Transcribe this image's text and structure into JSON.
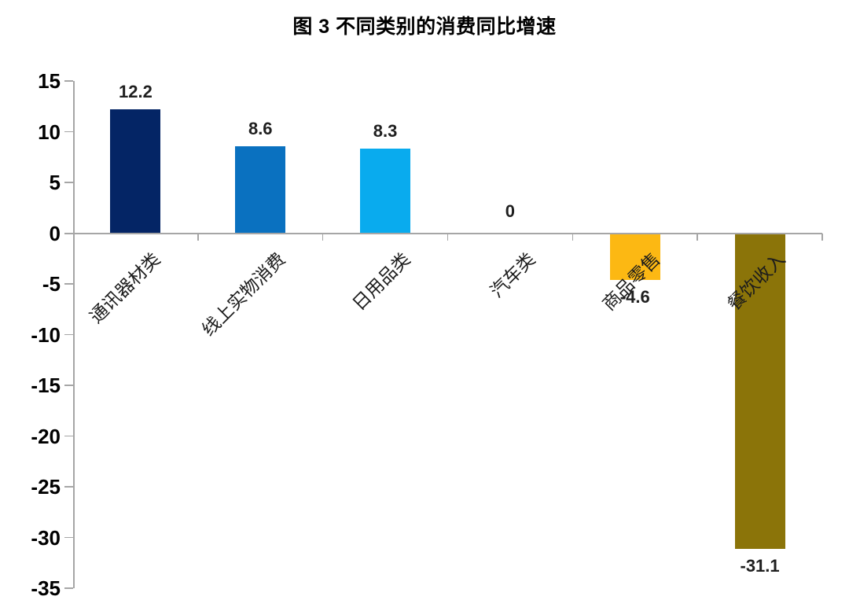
{
  "chart_data": {
    "type": "bar",
    "title": "图 3  不同类别的消费同比增速",
    "categories": [
      "通讯器材类",
      "线上实物消费",
      "日用品类",
      "汽车类",
      "商品零售",
      "餐饮收入"
    ],
    "values": [
      12.2,
      8.6,
      8.3,
      0,
      -4.6,
      -31.1
    ],
    "value_labels": [
      "12.2",
      "8.6",
      "8.3",
      "0",
      "-4.6",
      "-31.1"
    ],
    "bar_colors": [
      "#042565",
      "#0a71c0",
      "#09abee",
      null,
      "#fcb813",
      "#8b7409"
    ],
    "xlabel": "",
    "ylabel": "",
    "ylim": [
      -35,
      15
    ],
    "yticks": [
      15,
      10,
      5,
      0,
      -5,
      -10,
      -15,
      -20,
      -25,
      -30,
      -35
    ],
    "ytick_step": 5,
    "grid": false,
    "legend_position": "none",
    "category_label_rotation_deg": 45
  },
  "colors": {
    "axis": "#a6a6a6",
    "title_text": "#000000",
    "axis_label_text": "#000000",
    "value_label_text": "#1f1f1f",
    "category_label_text": "#1c1c1c",
    "background": "#ffffff"
  }
}
